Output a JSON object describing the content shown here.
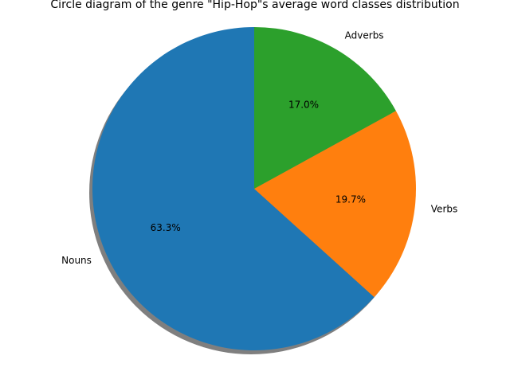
{
  "chart_data": {
    "type": "pie",
    "title": "Circle diagram of the genre \"Hip-Hop\"s average word classes distribution",
    "start_angle_deg": 90,
    "direction": "counterclockwise",
    "shadow": true,
    "slices": [
      {
        "label": "Nouns",
        "value": 63.3,
        "pct_label": "63.3%",
        "color": "#1f77b4"
      },
      {
        "label": "Verbs",
        "value": 19.7,
        "pct_label": "19.7%",
        "color": "#ff7f0e"
      },
      {
        "label": "Adverbs",
        "value": 17.0,
        "pct_label": "17.0%",
        "color": "#2ca02c"
      }
    ]
  }
}
